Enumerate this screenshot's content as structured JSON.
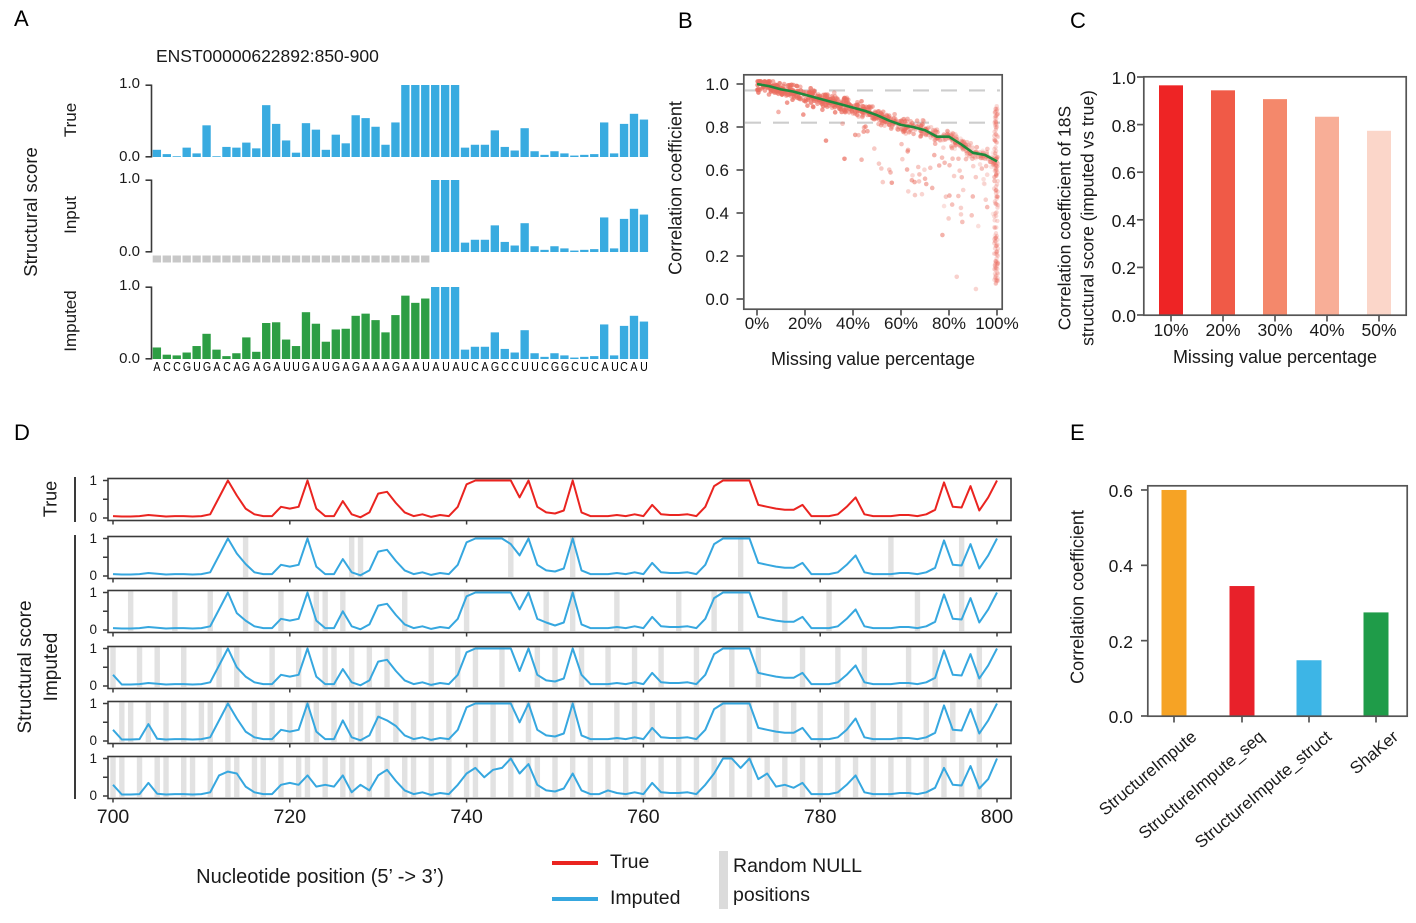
{
  "panel_a": {
    "label": "A",
    "title": "ENST00000622892:850-900",
    "ylabel": "Structural score",
    "row_labels": [
      "True",
      "Input",
      "Imputed"
    ],
    "ytick_top": "1.0",
    "ytick_bottom": "0.0",
    "sequence": "ACCGUGACAGAGAUUGAUGAGAAAGAAUAUAUCAGCCUUCGGCUCAUCAU"
  },
  "panel_b": {
    "label": "B",
    "xlabel": "Missing value percentage",
    "ylabel": "Correlation coefficient",
    "xtick_labels": [
      "0%",
      "20%",
      "40%",
      "60%",
      "80%",
      "100%"
    ],
    "ytick_labels": [
      "1.0",
      "0.8",
      "0.6",
      "0.4",
      "0.2",
      "0.0"
    ]
  },
  "panel_c": {
    "label": "C",
    "ylabel_line1": "Correlation coefficient of 18S",
    "ylabel_line2": "structural score (imputed vs true)",
    "xlabel": "Missing value percentage",
    "xtick_labels": [
      "10%",
      "20%",
      "30%",
      "40%",
      "50%"
    ],
    "ytick_labels": [
      "0.0",
      "0.2",
      "0.4",
      "0.6",
      "0.8",
      "1.0"
    ]
  },
  "panel_d": {
    "label": "D",
    "row1_label": "True",
    "group_label_line1": "Structural score",
    "group_label_line2": "Imputed",
    "xlabel": "Nucleotide position (5’ -> 3’)",
    "xtick_labels": [
      "700",
      "720",
      "740",
      "760",
      "780",
      "800"
    ],
    "ytick_top": "1",
    "ytick_bottom": "0",
    "legend": {
      "true_label": "True",
      "imputed_label": "Imputed",
      "null_label_line1": "Random NULL",
      "null_label_line2": "positions"
    }
  },
  "panel_e": {
    "label": "E",
    "ylabel": "Correlation coefficient",
    "ytick_labels": [
      "0.0",
      "0.2",
      "0.4",
      "0.6"
    ],
    "xtick_labels": [
      "StructureImpute",
      "StructureImpute_seq",
      "StructureImpute_struct",
      "ShaKer"
    ]
  },
  "colors": {
    "measured_blue": "#39ABE0",
    "imputed_green": "#2D9E44",
    "null_gray": "#C8C8C8",
    "true_red": "#EA2420",
    "imputed_line_blue": "#36A7DF",
    "band_gray": "#E2E2E2",
    "scatter_pink": "#EA6D5F",
    "trend_green": "#1E8A3C",
    "dashed_gray": "#CDCDCD",
    "frame": "#3A3A3A"
  },
  "chart_data": [
    {
      "id": "a_true",
      "type": "bar",
      "panel": "A",
      "series_label": "True",
      "ylim": [
        0,
        1
      ],
      "values": [
        0.1,
        0.04,
        0.01,
        0.13,
        0.05,
        0.44,
        0.01,
        0.14,
        0.13,
        0.2,
        0.12,
        0.72,
        0.46,
        0.23,
        0.06,
        0.47,
        0.38,
        0.1,
        0.31,
        0.19,
        0.58,
        0.54,
        0.42,
        0.17,
        0.48,
        1.0,
        1.0,
        1.0,
        1.0,
        1.0,
        1.0,
        0.13,
        0.17,
        0.17,
        0.37,
        0.14,
        0.09,
        0.4,
        0.08,
        0.03,
        0.08,
        0.05,
        0.02,
        0.03,
        0.04,
        0.48,
        0.05,
        0.46,
        0.6,
        0.52
      ]
    },
    {
      "id": "a_input",
      "type": "bar",
      "panel": "A",
      "series_label": "Input",
      "ylim": [
        0,
        1
      ],
      "null_count": 28,
      "values": [
        null,
        null,
        null,
        null,
        null,
        null,
        null,
        null,
        null,
        null,
        null,
        null,
        null,
        null,
        null,
        null,
        null,
        null,
        null,
        null,
        null,
        null,
        null,
        null,
        null,
        null,
        null,
        null,
        1.0,
        1.0,
        1.0,
        0.13,
        0.17,
        0.17,
        0.37,
        0.14,
        0.09,
        0.4,
        0.08,
        0.03,
        0.08,
        0.05,
        0.02,
        0.03,
        0.04,
        0.48,
        0.05,
        0.46,
        0.6,
        0.52
      ]
    },
    {
      "id": "a_imputed",
      "type": "bar",
      "panel": "A",
      "series_label": "Imputed",
      "ylim": [
        0,
        1
      ],
      "imputed_count": 28,
      "values": [
        0.16,
        0.06,
        0.05,
        0.09,
        0.18,
        0.35,
        0.13,
        0.04,
        0.08,
        0.3,
        0.1,
        0.5,
        0.51,
        0.27,
        0.18,
        0.65,
        0.49,
        0.24,
        0.41,
        0.42,
        0.6,
        0.63,
        0.54,
        0.37,
        0.61,
        0.88,
        0.78,
        0.84,
        1.0,
        1.0,
        1.0,
        0.13,
        0.17,
        0.17,
        0.37,
        0.14,
        0.09,
        0.4,
        0.08,
        0.03,
        0.08,
        0.05,
        0.02,
        0.03,
        0.04,
        0.48,
        0.05,
        0.46,
        0.6,
        0.52
      ]
    },
    {
      "id": "b_scatter",
      "type": "scatter",
      "xlabel": "Missing value percentage",
      "ylabel": "Correlation coefficient",
      "xlim": [
        0,
        100
      ],
      "ylim": [
        0,
        1.03
      ],
      "xticks": [
        0,
        20,
        40,
        60,
        80,
        100
      ],
      "yticks": [
        1.0,
        0.8,
        0.6,
        0.4,
        0.2,
        0.0
      ],
      "dashed_hlines": [
        0.97,
        0.82
      ],
      "trend_x": [
        0,
        5,
        10,
        15,
        20,
        25,
        30,
        35,
        40,
        45,
        50,
        55,
        60,
        65,
        70,
        75,
        80,
        85,
        90,
        95,
        100
      ],
      "trend_y": [
        1.0,
        0.99,
        0.975,
        0.965,
        0.95,
        0.935,
        0.92,
        0.905,
        0.89,
        0.875,
        0.855,
        0.83,
        0.81,
        0.8,
        0.785,
        0.755,
        0.755,
        0.72,
        0.68,
        0.67,
        0.64
      ],
      "scatter_style": {
        "n_points": 760,
        "strip_points": 150,
        "seed": 11
      }
    },
    {
      "id": "c_bars",
      "type": "bar",
      "categories": [
        "10%",
        "20%",
        "30%",
        "40%",
        "50%"
      ],
      "values": [
        0.965,
        0.944,
        0.907,
        0.833,
        0.774
      ],
      "bar_colors": [
        "#EE2425",
        "#F05A47",
        "#F4886B",
        "#F8AE97",
        "#FBD6C9"
      ],
      "ylim": [
        0,
        1.0
      ],
      "ylabel": "Correlation coefficient of 18S structural score (imputed vs true)",
      "xlabel": "Missing value percentage"
    },
    {
      "id": "d_lines",
      "type": "line",
      "x_start": 700,
      "x_end": 800,
      "xticks": [
        700,
        720,
        740,
        760,
        780,
        800
      ],
      "ylim": [
        0,
        1
      ],
      "true_values": [
        0.05,
        0.04,
        0.04,
        0.05,
        0.08,
        0.06,
        0.04,
        0.05,
        0.05,
        0.04,
        0.05,
        0.1,
        0.55,
        1.0,
        0.6,
        0.25,
        0.1,
        0.05,
        0.05,
        0.3,
        0.25,
        0.3,
        1.0,
        0.25,
        0.05,
        0.05,
        0.45,
        0.1,
        0.02,
        0.15,
        0.65,
        0.7,
        0.4,
        0.15,
        0.05,
        0.1,
        0.03,
        0.08,
        0.05,
        0.3,
        0.9,
        1.0,
        1.0,
        1.0,
        1.0,
        1.0,
        0.55,
        1.0,
        0.3,
        0.15,
        0.12,
        0.2,
        1.0,
        0.15,
        0.05,
        0.05,
        0.05,
        0.08,
        0.05,
        0.1,
        0.05,
        0.35,
        0.1,
        0.08,
        0.08,
        0.1,
        0.05,
        0.3,
        0.85,
        1.0,
        1.0,
        1.0,
        1.0,
        0.35,
        0.3,
        0.25,
        0.22,
        0.22,
        0.35,
        0.05,
        0.05,
        0.05,
        0.1,
        0.3,
        0.55,
        0.1,
        0.05,
        0.05,
        0.05,
        0.08,
        0.08,
        0.05,
        0.1,
        0.22,
        0.95,
        0.3,
        0.28,
        0.85,
        0.2,
        0.55,
        1.0
      ],
      "imputed_rows": [
        {
          "null_positions": [
            15,
            27,
            28,
            45,
            52,
            71,
            88,
            96
          ],
          "overrides": {
            "15": 0.32,
            "45": 0.85
          }
        },
        {
          "null_positions": [
            2,
            7,
            11,
            15,
            19,
            23,
            24,
            26,
            33,
            40,
            49,
            52,
            57,
            64,
            68,
            71,
            76,
            81,
            91,
            96
          ],
          "overrides": {
            "14": 0.45,
            "26": 0.5,
            "49": 0.2
          }
        },
        {
          "null_positions": [
            0,
            3,
            5,
            8,
            12,
            14,
            18,
            21,
            24,
            25,
            27,
            29,
            31,
            36,
            39,
            41,
            44,
            48,
            50,
            53,
            56,
            59,
            62,
            66,
            70,
            73,
            78,
            82,
            85,
            90,
            93,
            98
          ],
          "overrides": {
            "0": 0.3,
            "14": 0.5,
            "46": 0.4,
            "53": 0.3
          }
        },
        {
          "null_positions": [
            1,
            2,
            4,
            6,
            8,
            10,
            11,
            13,
            16,
            18,
            20,
            22,
            23,
            25,
            27,
            28,
            30,
            32,
            34,
            36,
            38,
            41,
            43,
            45,
            47,
            50,
            52,
            54,
            57,
            59,
            61,
            64,
            66,
            69,
            72,
            75,
            77,
            80,
            83,
            86,
            89,
            92,
            95,
            98
          ],
          "overrides": {
            "0": 0.3,
            "4": 0.45,
            "26": 0.55,
            "31": 0.55,
            "46": 0.5,
            "84": 0.6
          }
        },
        {
          "null_positions": [
            0,
            1,
            3,
            5,
            6,
            8,
            9,
            11,
            13,
            14,
            16,
            17,
            19,
            21,
            22,
            24,
            26,
            27,
            29,
            31,
            33,
            34,
            36,
            38,
            40,
            41,
            43,
            45,
            47,
            48,
            50,
            52,
            54,
            56,
            58,
            60,
            62,
            64,
            66,
            68,
            70,
            72,
            74,
            76,
            78,
            80,
            82,
            84,
            86,
            88,
            90,
            92,
            94,
            96,
            98
          ],
          "overrides": {
            "0": 0.3,
            "4": 0.35,
            "13": 0.65,
            "20": 0.35,
            "22": 0.55,
            "24": 0.3,
            "25": 0.25,
            "26": 0.55,
            "28": 0.3,
            "30": 0.55,
            "40": 0.6,
            "41": 0.75,
            "42": 0.5,
            "43": 0.7,
            "44": 0.75,
            "45": 1.0,
            "46": 0.6,
            "47": 0.85,
            "52": 0.6,
            "56": 0.15,
            "68": 0.6,
            "69": 1.0,
            "71": 0.75,
            "72": 1.0,
            "73": 0.45,
            "74": 0.6,
            "76": 0.3,
            "94": 0.75,
            "97": 0.8,
            "99": 0.45
          }
        }
      ]
    },
    {
      "id": "e_bars",
      "type": "bar",
      "categories": [
        "StructureImpute",
        "StructureImpute_seq",
        "StructureImpute_struct",
        "ShaKer"
      ],
      "values": [
        0.6,
        0.345,
        0.148,
        0.275
      ],
      "bar_colors": [
        "#F6A325",
        "#E8212A",
        "#3DB5E6",
        "#1F9C49"
      ],
      "ylim": [
        0,
        0.62
      ],
      "yticks": [
        0,
        0.2,
        0.4,
        0.6
      ],
      "ylabel": "Correlation coefficient"
    }
  ]
}
